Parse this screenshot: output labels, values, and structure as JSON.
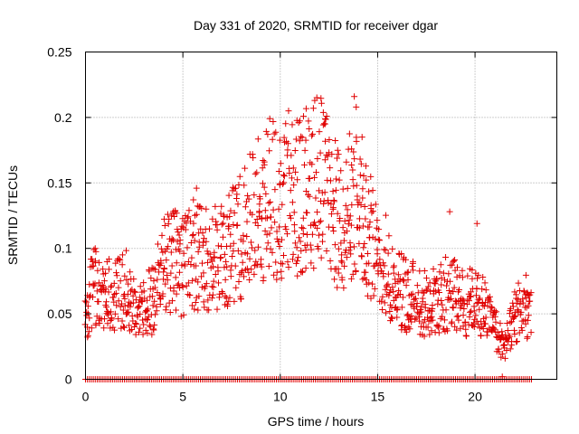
{
  "chart_data": {
    "type": "scatter",
    "title": "Day 331 of 2020, SRMTID for receiver dgar",
    "xlabel": "GPS time / hours",
    "ylabel": "SRMTID / TECUs",
    "xlim": [
      0,
      24.2
    ],
    "ylim": [
      0,
      0.25
    ],
    "xticks": [
      0,
      5,
      10,
      15,
      20
    ],
    "xtick_labels": [
      "0",
      "5",
      "10",
      "15",
      "20"
    ],
    "yticks": [
      0,
      0.05,
      0.1,
      0.15,
      0.2,
      0.25
    ],
    "ytick_labels": [
      "0",
      "0.05",
      "0.1",
      "0.15",
      "0.2",
      "0.25"
    ],
    "grid": true,
    "marker": "+",
    "color": "#e00000",
    "zero_band": {
      "x_start": 0.0,
      "x_end": 22.9,
      "step": 0.1,
      "y": 0
    },
    "envelope": [
      [
        0.0,
        0.042
      ],
      [
        0.4,
        0.075
      ],
      [
        0.8,
        0.068
      ],
      [
        1.5,
        0.062
      ],
      [
        2.0,
        0.07
      ],
      [
        2.5,
        0.055
      ],
      [
        3.0,
        0.058
      ],
      [
        3.5,
        0.06
      ],
      [
        4.0,
        0.085
      ],
      [
        4.5,
        0.09
      ],
      [
        5.0,
        0.085
      ],
      [
        5.5,
        0.095
      ],
      [
        6.0,
        0.09
      ],
      [
        6.5,
        0.09
      ],
      [
        7.0,
        0.095
      ],
      [
        7.5,
        0.1
      ],
      [
        8.0,
        0.11
      ],
      [
        8.5,
        0.12
      ],
      [
        9.0,
        0.13
      ],
      [
        9.5,
        0.14
      ],
      [
        10.0,
        0.13
      ],
      [
        10.5,
        0.145
      ],
      [
        11.0,
        0.14
      ],
      [
        11.5,
        0.15
      ],
      [
        12.0,
        0.155
      ],
      [
        12.5,
        0.14
      ],
      [
        13.0,
        0.12
      ],
      [
        13.5,
        0.13
      ],
      [
        14.0,
        0.13
      ],
      [
        14.5,
        0.11
      ],
      [
        15.0,
        0.1
      ],
      [
        15.5,
        0.085
      ],
      [
        16.0,
        0.07
      ],
      [
        16.5,
        0.065
      ],
      [
        17.0,
        0.062
      ],
      [
        17.5,
        0.058
      ],
      [
        18.0,
        0.06
      ],
      [
        18.5,
        0.065
      ],
      [
        19.0,
        0.063
      ],
      [
        19.5,
        0.058
      ],
      [
        20.0,
        0.06
      ],
      [
        20.5,
        0.052
      ],
      [
        21.0,
        0.04
      ],
      [
        21.5,
        0.025
      ],
      [
        22.0,
        0.045
      ],
      [
        22.5,
        0.058
      ],
      [
        22.9,
        0.05
      ]
    ],
    "notable_points": [
      {
        "x": 0.5,
        "y": 0.1
      },
      {
        "x": 5.7,
        "y": 0.146
      },
      {
        "x": 11.7,
        "y": 0.207
      },
      {
        "x": 12.3,
        "y": 0.195
      },
      {
        "x": 13.8,
        "y": 0.216
      },
      {
        "x": 13.9,
        "y": 0.208
      },
      {
        "x": 14.2,
        "y": 0.185
      },
      {
        "x": 18.7,
        "y": 0.128
      },
      {
        "x": 20.1,
        "y": 0.119
      },
      {
        "x": 21.4,
        "y": 0.002
      }
    ]
  }
}
